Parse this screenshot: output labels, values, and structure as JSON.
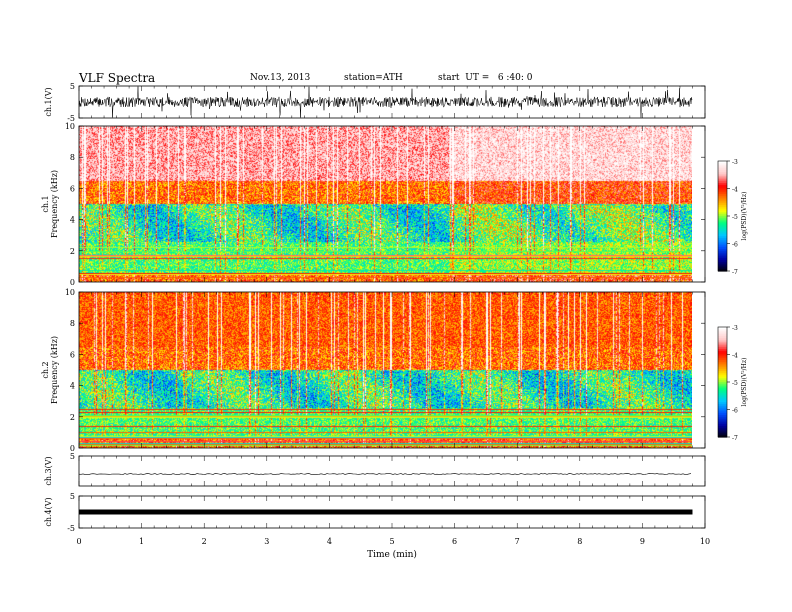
{
  "header": {
    "title": "VLF Spectra",
    "date": "Nov.13, 2013",
    "station": "station=ATH",
    "start": "start  UT =   6 :40: 0"
  },
  "colors": {
    "scale": [
      "#000000",
      "#0000a0",
      "#0050ff",
      "#00c8ff",
      "#00ff80",
      "#ffff00",
      "#ff8000",
      "#ff0000",
      "#ffc8c8",
      "#ffffff"
    ]
  },
  "chart_data": [
    {
      "type": "line",
      "ylabel": "ch.1(V)",
      "ylim": [
        -5,
        5
      ],
      "yticks": [
        "5",
        "-5"
      ],
      "description_of_signal": "noisy waveform around 0 V"
    },
    {
      "type": "heatmap",
      "ylabel_channel": "ch.1",
      "ylabel": "Frequency  (kHz)",
      "ylim": [
        0,
        10
      ],
      "yticks": [
        "0",
        "2",
        "4",
        "6",
        "8",
        "10"
      ],
      "colorbar": {
        "label": "log(PSD)(V²/Hz)",
        "ticks": [
          "-3",
          "-4",
          "-5",
          "-6",
          "-7"
        ],
        "range": [
          -7,
          -3
        ]
      }
    },
    {
      "type": "heatmap",
      "ylabel_channel": "ch.2",
      "ylabel": "Frequency  (kHz)",
      "ylim": [
        0,
        10
      ],
      "yticks": [
        "0",
        "2",
        "4",
        "6",
        "8",
        "10"
      ],
      "colorbar": {
        "label": "log(PSD)(V²/Hz)",
        "ticks": [
          "-3",
          "-4",
          "-5",
          "-6",
          "-7"
        ],
        "range": [
          -7,
          -3
        ]
      }
    },
    {
      "type": "line",
      "ylabel": "ch.3(V)",
      "ylim": [
        -5,
        5
      ],
      "yticks": [
        "5"
      ]
    },
    {
      "type": "line",
      "ylabel": "ch.4(V)",
      "ylim": [
        -5,
        5
      ],
      "yticks": [
        "5",
        "-5"
      ]
    }
  ],
  "xaxis": {
    "label": "Time  (min)",
    "ticks": [
      "0",
      "1",
      "2",
      "3",
      "4",
      "5",
      "6",
      "7",
      "8",
      "9",
      "10"
    ],
    "xlim": [
      0,
      10
    ],
    "data_end": 9.8
  }
}
